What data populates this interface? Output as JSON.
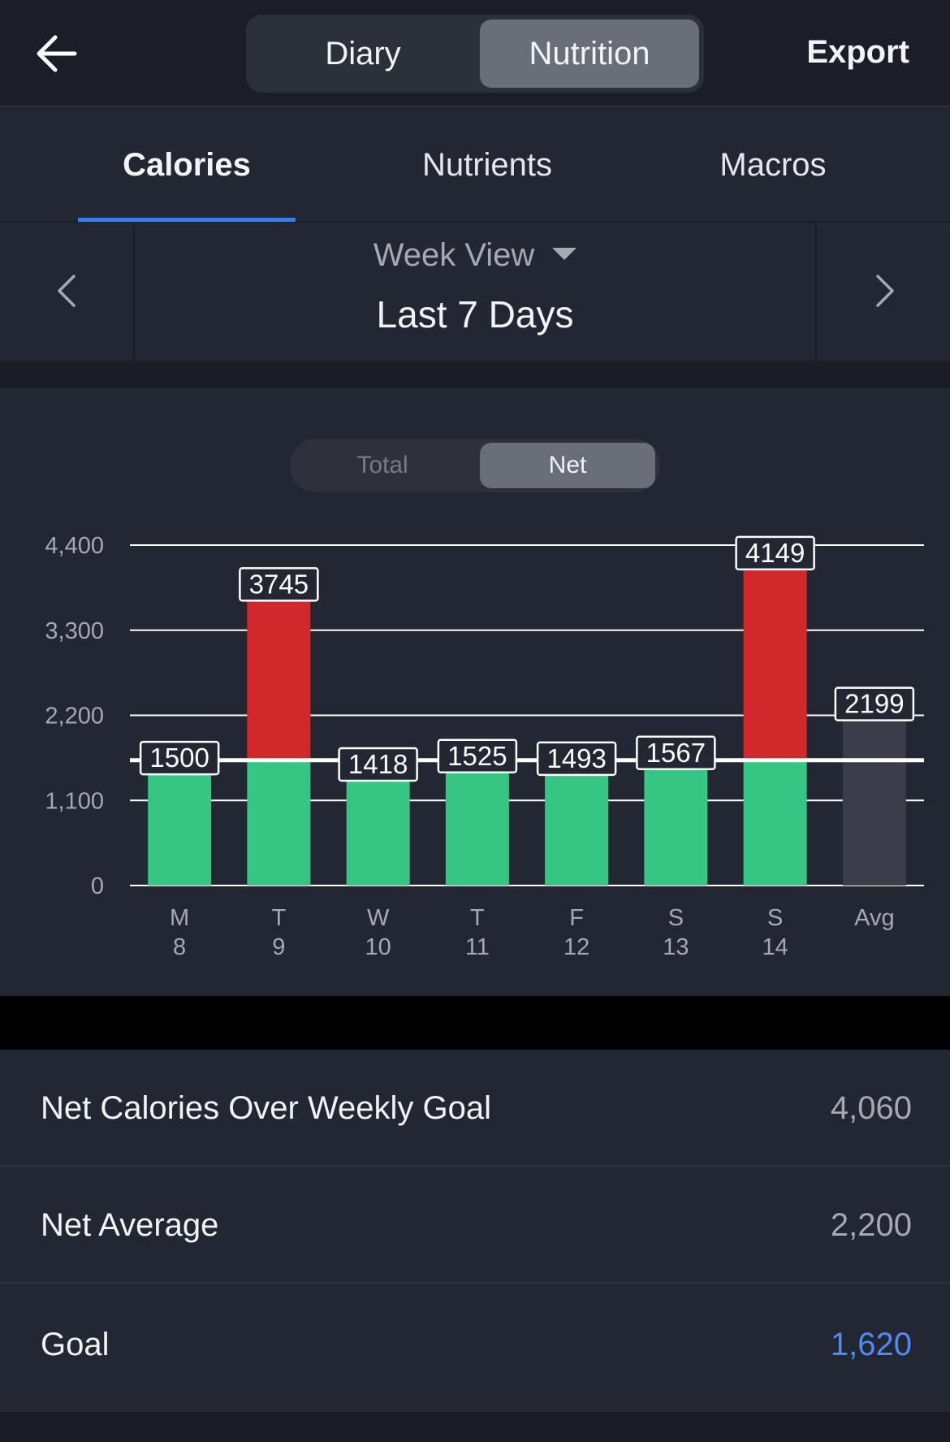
{
  "header": {
    "back_icon": "arrow-left-icon",
    "segments": [
      "Diary",
      "Nutrition"
    ],
    "active_segment": "Nutrition",
    "export_label": "Export"
  },
  "tabs": [
    {
      "label": "Calories",
      "active": true
    },
    {
      "label": "Nutrients",
      "active": false
    },
    {
      "label": "Macros",
      "active": false
    }
  ],
  "week_selector": {
    "view_label": "Week View",
    "range_label": "Last 7 Days",
    "prev_icon": "chevron-left-icon",
    "next_icon": "chevron-right-icon"
  },
  "chart_toggle": {
    "options": [
      "Total",
      "Net"
    ],
    "active": "Net"
  },
  "chart_data": {
    "type": "bar",
    "categories": [
      {
        "day": "M",
        "date": "8"
      },
      {
        "day": "T",
        "date": "9"
      },
      {
        "day": "W",
        "date": "10"
      },
      {
        "day": "T",
        "date": "11"
      },
      {
        "day": "F",
        "date": "12"
      },
      {
        "day": "S",
        "date": "13"
      },
      {
        "day": "S",
        "date": "14"
      },
      {
        "day": "Avg",
        "date": ""
      }
    ],
    "values": [
      1500,
      3745,
      1418,
      1525,
      1493,
      1567,
      4149,
      2199
    ],
    "value_labels": [
      "1500",
      "3745",
      "1418",
      "1525",
      "1493",
      "1567",
      "4149",
      "2199"
    ],
    "goal": 1620,
    "yticks": [
      0,
      1100,
      2200,
      3300,
      4400
    ],
    "ytick_labels": [
      "0",
      "1,100",
      "2,200",
      "3,300",
      "4,400"
    ],
    "ylim": [
      0,
      4400
    ],
    "colors": {
      "under_goal": "#37c584",
      "over_goal": "#d0282b",
      "average": "#3b3e4a",
      "gridline": "#ffffff"
    }
  },
  "summary": [
    {
      "label": "Net Calories Over Weekly Goal",
      "value": "4,060",
      "accent": false
    },
    {
      "label": "Net Average",
      "value": "2,200",
      "accent": false
    },
    {
      "label": "Goal",
      "value": "1,620",
      "accent": true
    }
  ],
  "colors": {
    "accent": "#4d8cf5",
    "tab_indicator": "#3e7de0",
    "panel_bg": "#232633"
  }
}
